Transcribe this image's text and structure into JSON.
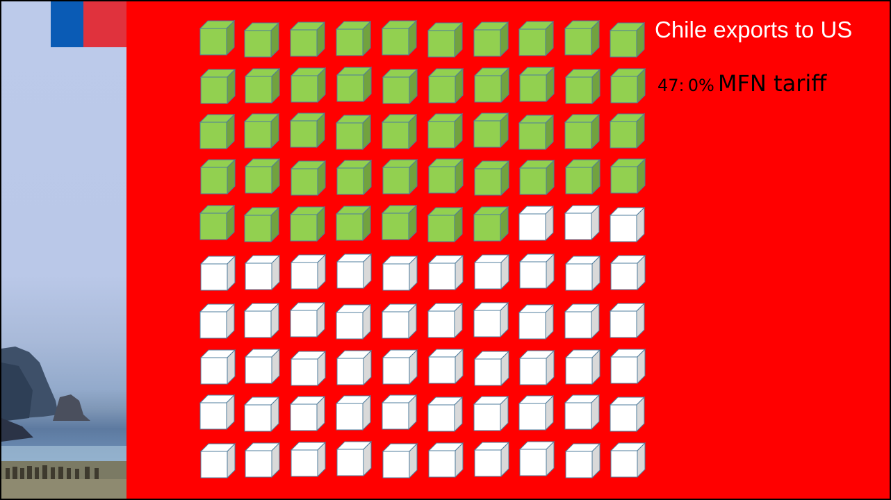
{
  "slide": {
    "title": "Chile exports to US",
    "subtitle_count": "47",
    "subtitle_sep": ":",
    "subtitle_rate": "0%",
    "subtitle_label": "MFN tariff"
  },
  "colors": {
    "background": "#ff0000",
    "duty_free_fill": "#92d050",
    "other_fill": "#ffffff",
    "flag_blue": "#0a5bb5",
    "flag_red": "#e0323d",
    "title_text": "#ffffff",
    "subtitle_text": "#000000"
  },
  "chart_data": {
    "type": "waffle",
    "unit": "cube",
    "rows": 10,
    "columns": 10,
    "total": 100,
    "series": [
      {
        "value": 47,
        "color": "#92d050"
      },
      {
        "value": 53,
        "color": "#ffffff"
      }
    ]
  }
}
